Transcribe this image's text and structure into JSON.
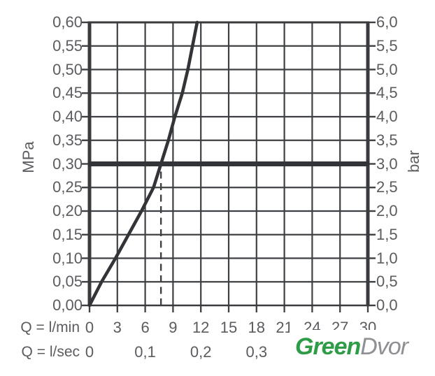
{
  "colors": {
    "grid": "#3f4043",
    "axis": "#3a3b3e",
    "curve": "#333437",
    "pressure_line": "#333437",
    "tick_label": "#5b5c60",
    "logo_green": "#2e9c47",
    "logo_gray": "#8f9094",
    "background": "#ffffff"
  },
  "chart_data": {
    "type": "line",
    "title": "",
    "grid": true,
    "x_axis": {
      "label_row1": "Q = l/min",
      "label_row2": "Q = l/sec",
      "range_lmin": [
        0,
        30
      ],
      "grid_step_lmin": 3,
      "ticks_lmin": [
        "0",
        "3",
        "6",
        "9",
        "12",
        "15",
        "18",
        "21",
        "24",
        "27",
        "30"
      ],
      "ticks_lsec": [
        {
          "value": "0",
          "at_lmin": 0
        },
        {
          "value": "0,1",
          "at_lmin": 6
        },
        {
          "value": "0,2",
          "at_lmin": 12
        },
        {
          "value": "0,3",
          "at_lmin": 18
        }
      ]
    },
    "y_axis_left": {
      "label": "MPa",
      "range": [
        0,
        0.6
      ],
      "grid_step": 0.05,
      "ticks": [
        "0,00",
        "0,05",
        "0,10",
        "0,15",
        "0,20",
        "0,25",
        "0,30",
        "0,35",
        "0,40",
        "0,45",
        "0,50",
        "0,55",
        "0,60"
      ]
    },
    "y_axis_right": {
      "label": "bar",
      "range": [
        0,
        6
      ],
      "grid_step": 0.5,
      "ticks": [
        "0,0",
        "0,5",
        "1,0",
        "1,5",
        "2,0",
        "2,5",
        "3,0",
        "3,5",
        "4,0",
        "4,5",
        "5,0",
        "5,5",
        "6,0"
      ]
    },
    "series": [
      {
        "name": "flow-rate-vs-pressure-curve",
        "points_lmin_mpa": [
          [
            0,
            0.0
          ],
          [
            1.3,
            0.05
          ],
          [
            2.8,
            0.1
          ],
          [
            4.2,
            0.15
          ],
          [
            5.6,
            0.2
          ],
          [
            6.9,
            0.25
          ],
          [
            7.7,
            0.3
          ],
          [
            8.5,
            0.35
          ],
          [
            9.2,
            0.4
          ],
          [
            10.0,
            0.45
          ],
          [
            10.6,
            0.5
          ],
          [
            11.1,
            0.55
          ],
          [
            11.6,
            0.6
          ]
        ]
      }
    ],
    "annotations": {
      "pressure_line_mpa": 0.3,
      "dashed_guide_lmin": 7.7,
      "dashed_guide_top_mpa": 0.3
    }
  },
  "watermark": {
    "part1": "Green",
    "part2": "Dvor"
  }
}
